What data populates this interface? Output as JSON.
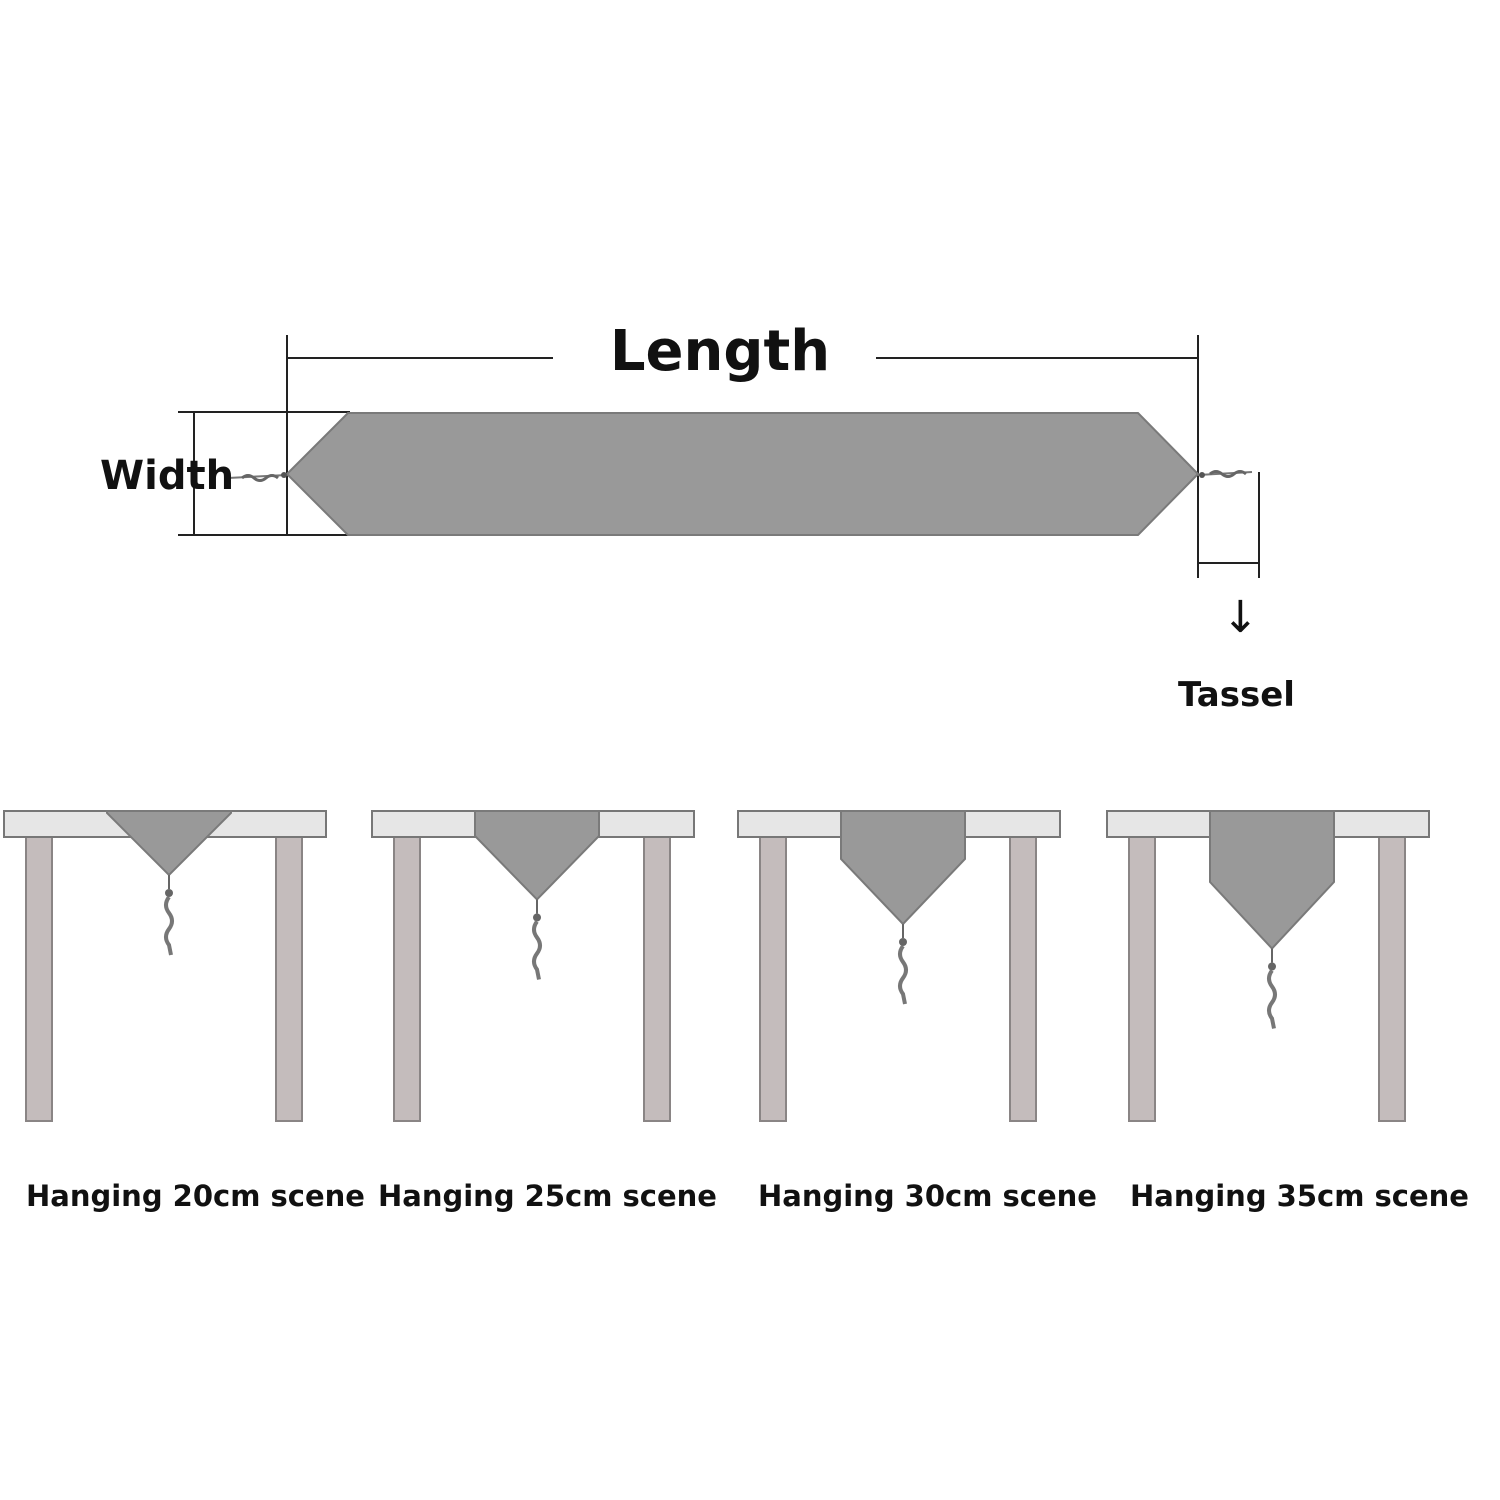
{
  "labels": {
    "length": "Length",
    "width": "Width",
    "tassel": "Tassel"
  },
  "arrow_glyph": "↓",
  "colors": {
    "runner": "#999999",
    "runner_edge": "#7a7a7a",
    "leg": "#c4bcbc",
    "tabletop": "#e6e6e6",
    "dimension_line": "#222222"
  },
  "scenes": [
    {
      "caption": "Hanging 20cm scene",
      "hang_cm": 20
    },
    {
      "caption": "Hanging 25cm scene",
      "hang_cm": 25
    },
    {
      "caption": "Hanging 30cm scene",
      "hang_cm": 30
    },
    {
      "caption": "Hanging 35cm scene",
      "hang_cm": 35
    }
  ]
}
